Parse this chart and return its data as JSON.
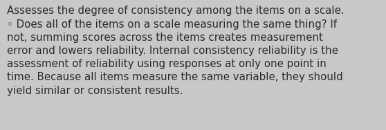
{
  "background_color": "#c8c8c8",
  "text_color": "#2b2b2b",
  "font_size": 10.8,
  "line1": "Assesses the degree of consistency among the items on a scale.",
  "line2": "◦ Does all of the items on a scale measuring the same thing? If",
  "line3": "not, summing scores across the items creates measurement",
  "line4": "error and lowers reliability. Internal consistency reliability is the",
  "line5": "assessment of reliability using responses at only one point in",
  "line6": "time. Because all items measure the same variable, they should",
  "line7": "yield similar or consistent results.",
  "fig_width": 5.58,
  "fig_height": 1.88,
  "dpi": 100
}
